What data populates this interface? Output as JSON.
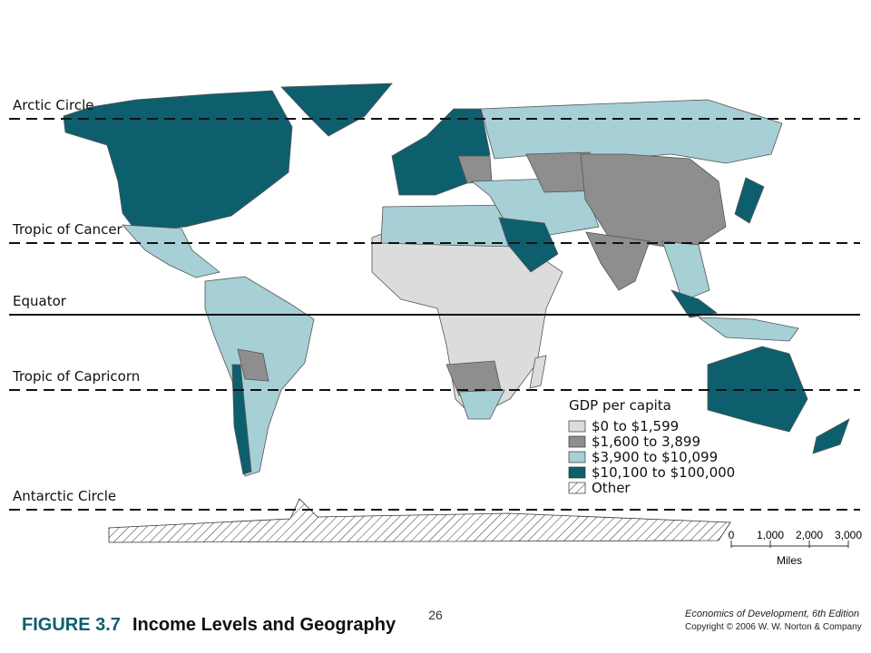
{
  "map": {
    "lines": [
      {
        "label": "Arctic Circle"
      },
      {
        "label": "Tropic of Cancer"
      },
      {
        "label": "Equator"
      },
      {
        "label": "Tropic of Capricorn"
      },
      {
        "label": "Antarctic Circle"
      }
    ],
    "legend": {
      "title": "GDP per capita",
      "items": [
        {
          "label": "$0 to $1,599",
          "color": "#dcdcdc"
        },
        {
          "label": "$1,600 to 3,899",
          "color": "#8e8e8e"
        },
        {
          "label": "$3,900 to $10,099",
          "color": "#a6cfd6"
        },
        {
          "label": "$10,100 to $100,000",
          "color": "#0d5f6d"
        }
      ],
      "other": "Other"
    },
    "scale": {
      "ticks": [
        "0",
        "1,000",
        "2,000",
        "3,000"
      ],
      "unit": "Miles"
    }
  },
  "footer": {
    "page": "26",
    "figure_label": "FIGURE 3.7",
    "figure_title": "Income Levels and Geography",
    "book": "Economics of Development, 6th Edition",
    "copyright": "Copyright © 2006 W. W. Norton & Company"
  }
}
